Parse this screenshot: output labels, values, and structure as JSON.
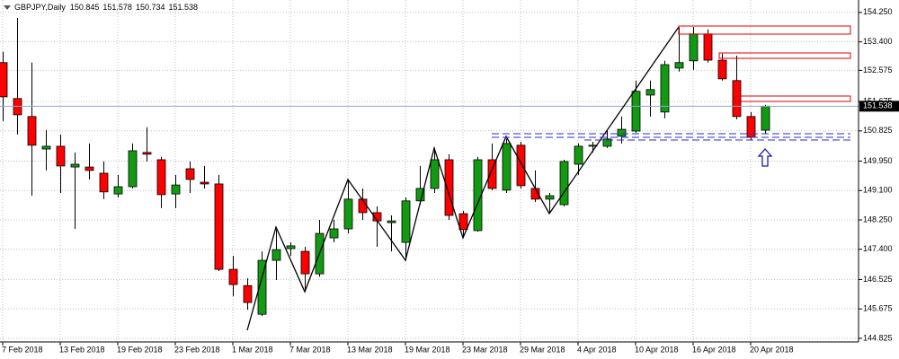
{
  "chart_data": {
    "type": "candlestick",
    "title": "GBPJPY,Daily",
    "categories": [
      "7 Feb 2018",
      null,
      null,
      null,
      "13 Feb 2018",
      null,
      null,
      null,
      "19 Feb 2018",
      null,
      null,
      null,
      "23 Feb 2018",
      null,
      null,
      null,
      "1 Mar 2018",
      null,
      null,
      null,
      "7 Mar 2018",
      null,
      null,
      null,
      "13 Mar 2018",
      null,
      null,
      null,
      "19 Mar 2018",
      null,
      null,
      null,
      "23 Mar 2018",
      null,
      null,
      null,
      "29 Mar 2018",
      null,
      null,
      null,
      "4 Apr 2018",
      null,
      null,
      null,
      "10 Apr 2018",
      null,
      null,
      null,
      "16 Apr 2018",
      null,
      null,
      null,
      "20 Apr 2018",
      null
    ],
    "open": [
      152.8,
      151.76,
      151.24,
      150.3,
      150.38,
      149.78,
      149.78,
      149.6,
      149.0,
      149.21,
      150.2,
      149.99,
      149.0,
      149.73,
      149.34,
      149.29,
      146.82,
      146.35,
      145.52,
      147.08,
      147.42,
      147.34,
      146.69,
      147.73,
      147.99,
      148.85,
      148.46,
      148.17,
      147.6,
      148.8,
      149.16,
      149.99,
      148.43,
      147.94,
      149.99,
      149.11,
      150.41,
      149.16,
      148.85,
      148.69,
      149.86,
      150.38,
      150.38,
      150.67,
      150.82,
      151.86,
      151.37,
      152.64,
      152.85,
      153.63,
      152.87,
      152.28,
      151.24,
      150.845
    ],
    "high": [
      153.11,
      154.09,
      152.8,
      150.85,
      150.72,
      150.2,
      150.46,
      149.94,
      149.55,
      150.46,
      150.93,
      150.07,
      149.55,
      149.94,
      149.81,
      149.55,
      147.21,
      146.56,
      147.34,
      147.97,
      147.6,
      147.47,
      148.25,
      148.25,
      149.42,
      149.16,
      148.64,
      148.38,
      148.9,
      149.81,
      150.33,
      150.15,
      148.51,
      150.07,
      150.46,
      150.59,
      150.51,
      149.68,
      149.03,
      149.99,
      150.46,
      150.51,
      150.85,
      151.24,
      152.28,
      152.28,
      152.85,
      153.83,
      153.83,
      153.76,
      153.06,
      153.0,
      151.37,
      151.578
    ],
    "low": [
      151.11,
      150.72,
      148.95,
      149.68,
      149.03,
      147.99,
      149.42,
      148.85,
      148.9,
      149.16,
      149.94,
      148.59,
      148.59,
      149.03,
      149.16,
      146.77,
      146.04,
      145.65,
      145.47,
      146.51,
      147.21,
      146.17,
      146.61,
      147.6,
      147.86,
      148.25,
      147.47,
      147.34,
      147.08,
      148.69,
      149.03,
      148.25,
      147.73,
      147.91,
      149.11,
      149.03,
      149.16,
      148.77,
      148.43,
      148.64,
      149.55,
      150.2,
      150.33,
      150.46,
      150.77,
      151.24,
      151.19,
      152.54,
      152.59,
      152.8,
      152.28,
      151.16,
      150.56,
      150.734
    ],
    "close": [
      151.81,
      151.29,
      150.41,
      150.38,
      149.81,
      149.86,
      149.68,
      149.06,
      149.21,
      150.25,
      150.15,
      148.98,
      149.26,
      149.42,
      149.29,
      146.82,
      146.38,
      145.86,
      147.08,
      147.39,
      147.5,
      146.69,
      147.86,
      147.99,
      148.85,
      148.46,
      148.22,
      148.22,
      148.8,
      149.16,
      149.99,
      148.38,
      147.97,
      149.99,
      149.16,
      150.46,
      149.24,
      148.85,
      148.95,
      149.94,
      150.38,
      150.41,
      150.59,
      150.87,
      151.97,
      152.02,
      152.74,
      152.8,
      153.63,
      152.87,
      152.33,
      151.24,
      150.64,
      151.538
    ],
    "up_color": "#139a13",
    "down_color": "#ff0000",
    "ylim": [
      144.72,
      154.61
    ],
    "yticks": [
      {
        "value": 154.25,
        "label": "154.250"
      },
      {
        "value": 153.4,
        "label": "153.400"
      },
      152.575,
      151.675,
      150.825,
      {
        "value": 149.95,
        "label": "149.950"
      },
      {
        "value": 149.1,
        "label": "149.100"
      },
      {
        "value": 148.25,
        "label": "148.250"
      },
      {
        "value": 147.4,
        "label": "147.400"
      },
      146.525,
      145.675,
      144.825
    ],
    "grid": true
  }
}
